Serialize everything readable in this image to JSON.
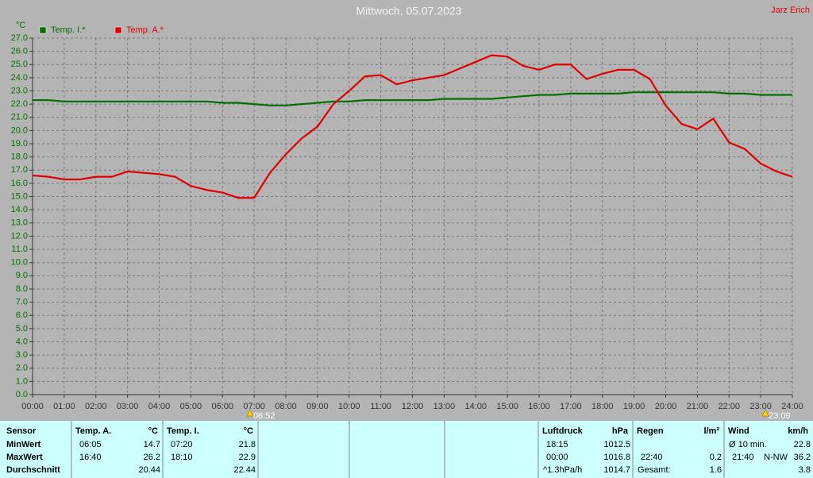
{
  "chart_data": {
    "type": "line",
    "title": "Mittwoch, 05.07.2023",
    "author": "Jarz Erich",
    "y_label": "°C",
    "x": [
      0,
      0.5,
      1,
      1.5,
      2,
      2.5,
      3,
      3.5,
      4,
      4.5,
      5,
      5.5,
      6,
      6.5,
      7,
      7.5,
      8,
      8.5,
      9,
      9.5,
      10,
      10.5,
      11,
      11.5,
      12,
      12.5,
      13,
      13.5,
      14,
      14.5,
      15,
      15.5,
      16,
      16.5,
      17,
      17.5,
      18,
      18.5,
      19,
      19.5,
      20,
      20.5,
      21,
      21.5,
      22,
      22.5,
      23,
      23.5,
      24
    ],
    "series": [
      {
        "name": "Temp. I.*",
        "color": "#007000",
        "values": [
          22.3,
          22.3,
          22.2,
          22.2,
          22.2,
          22.2,
          22.2,
          22.2,
          22.2,
          22.2,
          22.2,
          22.2,
          22.1,
          22.1,
          22.0,
          21.9,
          21.9,
          22.0,
          22.1,
          22.2,
          22.2,
          22.3,
          22.3,
          22.3,
          22.3,
          22.3,
          22.4,
          22.4,
          22.4,
          22.4,
          22.5,
          22.6,
          22.7,
          22.7,
          22.8,
          22.8,
          22.8,
          22.8,
          22.9,
          22.9,
          22.9,
          22.9,
          22.9,
          22.9,
          22.8,
          22.8,
          22.7,
          22.7,
          22.7
        ]
      },
      {
        "name": "Temp. A.*",
        "color": "#e00000",
        "values": [
          16.6,
          16.5,
          16.3,
          16.3,
          16.5,
          16.5,
          16.9,
          16.8,
          16.7,
          16.5,
          15.8,
          15.5,
          15.3,
          14.9,
          14.9,
          16.8,
          18.2,
          19.4,
          20.3,
          22.0,
          23.0,
          24.1,
          24.2,
          23.5,
          23.8,
          24.0,
          24.2,
          24.7,
          25.2,
          25.7,
          25.6,
          24.9,
          24.6,
          25.0,
          25.0,
          23.9,
          24.3,
          24.6,
          24.6,
          23.9,
          21.9,
          20.5,
          20.1,
          20.9,
          19.1,
          18.6,
          17.5,
          16.9,
          16.5
        ]
      }
    ],
    "xlim": [
      0,
      24
    ],
    "ylim": [
      0,
      27
    ],
    "grid": true,
    "xticks": [
      {
        "value": 0,
        "label": "00:00"
      },
      {
        "value": 1,
        "label": "01:00"
      },
      {
        "value": 2,
        "label": "02:00"
      },
      {
        "value": 3,
        "label": "03:00"
      },
      {
        "value": 4,
        "label": "04:00"
      },
      {
        "value": 5,
        "label": "05:00"
      },
      {
        "value": 6,
        "label": "06:00"
      },
      {
        "value": 7,
        "label": "07:00"
      },
      {
        "value": 8,
        "label": "08:00"
      },
      {
        "value": 9,
        "label": "09:00"
      },
      {
        "value": 10,
        "label": "10:00"
      },
      {
        "value": 11,
        "label": "11:00"
      },
      {
        "value": 12,
        "label": "12:00"
      },
      {
        "value": 13,
        "label": "13:00"
      },
      {
        "value": 14,
        "label": "14:00"
      },
      {
        "value": 15,
        "label": "15:00"
      },
      {
        "value": 16,
        "label": "16:00"
      },
      {
        "value": 17,
        "label": "17:00"
      },
      {
        "value": 18,
        "label": "18:00"
      },
      {
        "value": 19,
        "label": "19:00"
      },
      {
        "value": 20,
        "label": "20:00"
      },
      {
        "value": 21,
        "label": "21:00"
      },
      {
        "value": 22,
        "label": "22:00"
      },
      {
        "value": 23,
        "label": "23:00"
      },
      {
        "value": 24,
        "label": "24:00"
      }
    ],
    "yticks": [
      {
        "value": 0,
        "label": "0.0"
      },
      {
        "value": 1,
        "label": "1.0"
      },
      {
        "value": 2,
        "label": "2.0"
      },
      {
        "value": 3,
        "label": "3.0"
      },
      {
        "value": 4,
        "label": "4.0"
      },
      {
        "value": 5,
        "label": "5.0"
      },
      {
        "value": 6,
        "label": "6.0"
      },
      {
        "value": 7,
        "label": "7.0"
      },
      {
        "value": 8,
        "label": "8.0"
      },
      {
        "value": 9,
        "label": "9.0"
      },
      {
        "value": 10,
        "label": "10.0"
      },
      {
        "value": 11,
        "label": "11.0"
      },
      {
        "value": 12,
        "label": "12.0"
      },
      {
        "value": 13,
        "label": "13.0"
      },
      {
        "value": 14,
        "label": "14.0"
      },
      {
        "value": 15,
        "label": "15.0"
      },
      {
        "value": 16,
        "label": "16.0"
      },
      {
        "value": 17,
        "label": "17.0"
      },
      {
        "value": 18,
        "label": "18.0"
      },
      {
        "value": 19,
        "label": "19.0"
      },
      {
        "value": 20,
        "label": "20.0"
      },
      {
        "value": 21,
        "label": "21.0"
      },
      {
        "value": 22,
        "label": "22.0"
      },
      {
        "value": 23,
        "label": "23.0"
      },
      {
        "value": 24,
        "label": "24.0"
      },
      {
        "value": 25,
        "label": "25.0"
      },
      {
        "value": 26,
        "label": "26.0"
      },
      {
        "value": 27,
        "label": "27.0"
      }
    ],
    "annotations": [
      {
        "x": 6.87,
        "label": "06:52"
      },
      {
        "x": 23.15,
        "label": "23:09"
      }
    ]
  },
  "table": {
    "row_labels": [
      "Sensor",
      "MinWert",
      "MaxWert",
      "Durchschnitt"
    ],
    "groups": [
      {
        "header": "Temp. A.",
        "unit": "°C",
        "min": {
          "time": "06:05",
          "value": 14.7
        },
        "max": {
          "time": "16:40",
          "value": 26.2
        },
        "avg": {
          "value": 20.44
        }
      },
      {
        "header": "Temp. I.",
        "unit": "°C",
        "min": {
          "time": "07:20",
          "value": 21.8
        },
        "max": {
          "time": "18:10",
          "value": 22.9
        },
        "avg": {
          "value": 22.44
        }
      },
      {
        "header": "Luftdruck",
        "unit": "hPa",
        "min": {
          "time": "18:15",
          "value": 1012.5
        },
        "max": {
          "time": "00:00",
          "value": 1016.8
        },
        "avg": {
          "note": "^1.3hPa/h",
          "value": 1014.7
        }
      },
      {
        "header": "Regen",
        "unit": "l/m²",
        "max": {
          "time": "22:40",
          "value": 0.2
        },
        "avg": {
          "note": "Gesamt:",
          "value": 1.6
        }
      },
      {
        "header": "Wind",
        "unit": "km/h",
        "min": {
          "note": "Ø 10 min.",
          "value": 22.8
        },
        "max": {
          "time": "21:40",
          "direction": "N-NW",
          "value": 36.2
        },
        "avg": {
          "value": 3.8
        }
      }
    ]
  }
}
